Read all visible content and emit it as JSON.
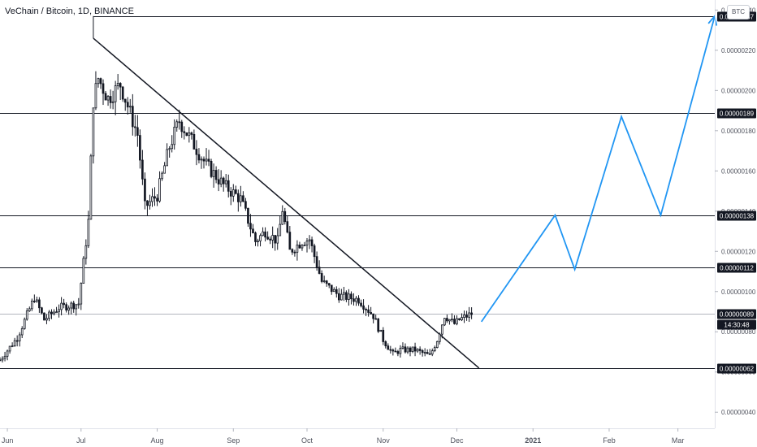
{
  "header": {
    "title": "VeChain / Bitcoin, 1D, BINANCE",
    "currency_badge": "BTC"
  },
  "colors": {
    "up": "#ffffff",
    "down": "#131722",
    "wick": "#131722",
    "projection": "#2196f3",
    "level_line": "#131722",
    "last_price_line": "#b2b5be"
  },
  "chart_data": {
    "type": "candlestick",
    "ylim": [
      3.2e-07,
      2.45e-06
    ],
    "y_ticks": [
      "0.00000040",
      "0.00000060",
      "0.00000080",
      "0.00000100",
      "0.00000120",
      "0.00000140",
      "0.00000160",
      "0.00000180",
      "0.00000200",
      "0.00000220",
      "0.00000240"
    ],
    "x_ticks": [
      "Jun",
      "Jul",
      "Aug",
      "Sep",
      "Oct",
      "Nov",
      "Dec",
      "2021",
      "Feb",
      "Mar"
    ],
    "x_tick_dates": [
      "2020-06-01",
      "2020-07-01",
      "2020-08-01",
      "2020-09-01",
      "2020-10-01",
      "2020-11-01",
      "2020-12-01",
      "2021-01-01",
      "2021-02-01",
      "2021-03-01"
    ],
    "date_range": [
      "2020-05-29",
      "2021-03-16"
    ],
    "horizontal_levels": [
      {
        "value": 2.37e-06,
        "label": "0.00000237"
      },
      {
        "value": 1.89e-06,
        "label": "0.00000189"
      },
      {
        "value": 1.38e-06,
        "label": "0.00000138"
      },
      {
        "value": 1.12e-06,
        "label": "0.00000112"
      },
      {
        "value": 6.2e-07,
        "label": "0.00000062"
      }
    ],
    "last_price": {
      "value": 8.9e-07,
      "label": "0.00000089",
      "countdown": "14:30:48"
    },
    "trendline": [
      [
        "2020-07-06",
        2.26e-06
      ],
      [
        "2020-12-10",
        6.2e-07
      ]
    ],
    "projection_path": [
      [
        "2020-12-11",
        8.5e-07
      ],
      [
        "2021-01-10",
        1.38e-06
      ],
      [
        "2021-01-18",
        1.11e-06
      ],
      [
        "2021-02-06",
        1.87e-06
      ],
      [
        "2021-02-22",
        1.38e-06
      ],
      [
        "2021-03-16",
        2.37e-06
      ]
    ],
    "anchor_points": [
      [
        "2020-05-29",
        6.6e-07
      ],
      [
        "2020-06-05",
        7.7e-07
      ],
      [
        "2020-06-12",
        9.7e-07
      ],
      [
        "2020-06-16",
        8.6e-07
      ],
      [
        "2020-06-22",
        9.2e-07
      ],
      [
        "2020-06-30",
        9.4e-07
      ],
      [
        "2020-07-04",
        1.35e-06
      ],
      [
        "2020-07-06",
        1.95e-06
      ],
      [
        "2020-07-08",
        2.06e-06
      ],
      [
        "2020-07-12",
        1.96e-06
      ],
      [
        "2020-07-17",
        2.03e-06
      ],
      [
        "2020-07-24",
        1.78e-06
      ],
      [
        "2020-07-27",
        1.42e-06
      ],
      [
        "2020-08-01",
        1.48e-06
      ],
      [
        "2020-08-06",
        1.72e-06
      ],
      [
        "2020-08-10",
        1.85e-06
      ],
      [
        "2020-08-15",
        1.75e-06
      ],
      [
        "2020-08-21",
        1.63e-06
      ],
      [
        "2020-08-28",
        1.53e-06
      ],
      [
        "2020-09-04",
        1.46e-06
      ],
      [
        "2020-09-10",
        1.25e-06
      ],
      [
        "2020-09-14",
        1.3e-06
      ],
      [
        "2020-09-19",
        1.25e-06
      ],
      [
        "2020-09-21",
        1.41e-06
      ],
      [
        "2020-09-24",
        1.2e-06
      ],
      [
        "2020-09-29",
        1.25e-06
      ],
      [
        "2020-10-02",
        1.26e-06
      ],
      [
        "2020-10-07",
        1.05e-06
      ],
      [
        "2020-10-14",
        9.8e-07
      ],
      [
        "2020-10-22",
        9.6e-07
      ],
      [
        "2020-10-28",
        8.8e-07
      ],
      [
        "2020-11-01",
        7.6e-07
      ],
      [
        "2020-11-05",
        6.9e-07
      ],
      [
        "2020-11-08",
        7.1e-07
      ],
      [
        "2020-11-14",
        7.1e-07
      ],
      [
        "2020-11-20",
        6.8e-07
      ],
      [
        "2020-11-23",
        7.6e-07
      ],
      [
        "2020-11-26",
        8.8e-07
      ],
      [
        "2020-11-30",
        8.4e-07
      ],
      [
        "2020-12-02",
        8.6e-07
      ],
      [
        "2020-12-07",
        8.9e-07
      ]
    ]
  }
}
